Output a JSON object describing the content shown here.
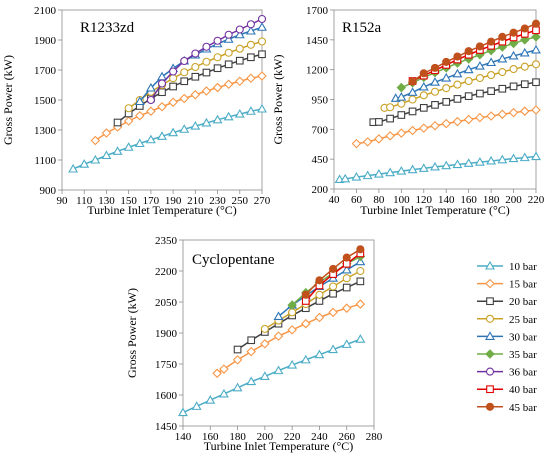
{
  "chart_data": [
    {
      "type": "line",
      "title": "R1233zd",
      "xlabel": "Turbine Inlet Temperature (°C)",
      "ylabel": "Gross Power (kW)",
      "xlim": [
        90,
        270
      ],
      "ylim": [
        900,
        2100
      ],
      "xticks": [
        90,
        110,
        130,
        150,
        170,
        190,
        210,
        230,
        250,
        270
      ],
      "yticks": [
        900,
        1100,
        1300,
        1500,
        1700,
        1900,
        2100
      ],
      "grid": false,
      "series": [
        {
          "name": "10 bar",
          "x": [
            100,
            110,
            120,
            130,
            140,
            150,
            160,
            170,
            180,
            190,
            200,
            210,
            220,
            230,
            240,
            250,
            260,
            270
          ],
          "y": [
            1040,
            1072,
            1100,
            1130,
            1158,
            1185,
            1210,
            1235,
            1258,
            1282,
            1305,
            1326,
            1347,
            1368,
            1388,
            1406,
            1425,
            1440
          ]
        },
        {
          "name": "15 bar",
          "x": [
            120,
            130,
            140,
            150,
            160,
            170,
            180,
            190,
            200,
            210,
            220,
            230,
            240,
            250,
            260,
            270
          ],
          "y": [
            1230,
            1280,
            1320,
            1360,
            1395,
            1425,
            1455,
            1485,
            1510,
            1535,
            1560,
            1583,
            1605,
            1625,
            1645,
            1660
          ]
        },
        {
          "name": "20 bar",
          "x": [
            140,
            150,
            160,
            170,
            180,
            190,
            200,
            210,
            220,
            230,
            240,
            250,
            260,
            270
          ],
          "y": [
            1350,
            1410,
            1460,
            1510,
            1552,
            1590,
            1625,
            1655,
            1683,
            1712,
            1738,
            1762,
            1785,
            1805
          ]
        },
        {
          "name": "25 bar",
          "x": [
            150,
            160,
            170,
            180,
            190,
            200,
            210,
            220,
            230,
            240,
            250,
            260,
            270
          ],
          "y": [
            1445,
            1500,
            1555,
            1600,
            1645,
            1685,
            1720,
            1755,
            1785,
            1815,
            1842,
            1868,
            1890
          ]
        },
        {
          "name": "30 bar",
          "x": [
            160,
            170,
            180,
            190,
            200,
            210,
            220,
            230,
            240,
            250,
            260,
            270
          ],
          "y": [
            1490,
            1580,
            1655,
            1710,
            1760,
            1800,
            1840,
            1875,
            1905,
            1935,
            1960,
            1985
          ]
        },
        {
          "name": "36 bar",
          "x": [
            170,
            180,
            190,
            200,
            210,
            220,
            230,
            240,
            250,
            260,
            270
          ],
          "y": [
            1500,
            1610,
            1690,
            1760,
            1810,
            1855,
            1895,
            1935,
            1970,
            2005,
            2040
          ]
        }
      ]
    },
    {
      "type": "line",
      "title": "R152a",
      "xlabel": "Turbine Inlet Temperature (°C)",
      "ylabel": "Gross Power (kW)",
      "xlim": [
        40,
        220
      ],
      "ylim": [
        200,
        1700
      ],
      "xticks": [
        40,
        60,
        80,
        100,
        120,
        140,
        160,
        180,
        200,
        220
      ],
      "yticks": [
        200,
        450,
        700,
        950,
        1200,
        1450,
        1700
      ],
      "grid": false,
      "series": [
        {
          "name": "10 bar",
          "x": [
            45,
            50,
            60,
            70,
            80,
            90,
            100,
            110,
            120,
            130,
            140,
            150,
            160,
            170,
            180,
            190,
            200,
            210,
            220
          ],
          "y": [
            280,
            285,
            300,
            312,
            325,
            337,
            350,
            362,
            373,
            385,
            395,
            405,
            415,
            425,
            435,
            445,
            455,
            463,
            472
          ]
        },
        {
          "name": "15 bar",
          "x": [
            60,
            70,
            80,
            90,
            100,
            110,
            120,
            130,
            140,
            150,
            160,
            170,
            180,
            190,
            200,
            210,
            220
          ],
          "y": [
            580,
            595,
            620,
            645,
            668,
            690,
            710,
            730,
            748,
            765,
            782,
            798,
            812,
            826,
            840,
            852,
            862
          ]
        },
        {
          "name": "20 bar",
          "x": [
            75,
            80,
            90,
            100,
            110,
            120,
            130,
            140,
            150,
            160,
            170,
            180,
            190,
            200,
            210,
            220
          ],
          "y": [
            760,
            762,
            790,
            820,
            850,
            880,
            905,
            930,
            955,
            978,
            1000,
            1020,
            1040,
            1060,
            1078,
            1095
          ]
        },
        {
          "name": "25 bar",
          "x": [
            85,
            90,
            100,
            110,
            120,
            130,
            140,
            150,
            160,
            170,
            180,
            190,
            200,
            210,
            220
          ],
          "y": [
            880,
            885,
            915,
            950,
            985,
            1015,
            1045,
            1075,
            1105,
            1130,
            1155,
            1180,
            1205,
            1225,
            1245
          ]
        },
        {
          "name": "30 bar",
          "x": [
            95,
            100,
            110,
            120,
            130,
            140,
            150,
            160,
            170,
            180,
            190,
            200,
            210,
            220
          ],
          "y": [
            960,
            970,
            1010,
            1055,
            1095,
            1130,
            1165,
            1200,
            1230,
            1260,
            1290,
            1315,
            1340,
            1365
          ]
        },
        {
          "name": "35 bar",
          "x": [
            100,
            110,
            120,
            130,
            140,
            150,
            160,
            170,
            180,
            190,
            200,
            210,
            220
          ],
          "y": [
            1050,
            1090,
            1135,
            1175,
            1215,
            1255,
            1290,
            1325,
            1360,
            1390,
            1420,
            1450,
            1475
          ]
        },
        {
          "name": "40 bar",
          "x": [
            110,
            120,
            130,
            140,
            150,
            160,
            170,
            180,
            190,
            200,
            210,
            220
          ],
          "y": [
            1105,
            1150,
            1195,
            1240,
            1285,
            1325,
            1365,
            1400,
            1435,
            1470,
            1500,
            1530
          ]
        },
        {
          "name": "45 bar",
          "x": [
            110,
            120,
            130,
            140,
            150,
            160,
            170,
            180,
            190,
            200,
            210,
            220
          ],
          "y": [
            1100,
            1170,
            1215,
            1265,
            1310,
            1355,
            1395,
            1435,
            1475,
            1510,
            1545,
            1585
          ]
        }
      ]
    },
    {
      "type": "line",
      "title": "Cyclopentane",
      "xlabel": "Turbine Inlet Temperature (°C)",
      "ylabel": "Gross Power (kW)",
      "xlim": [
        140,
        280
      ],
      "ylim": [
        1450,
        2350
      ],
      "xticks": [
        140,
        160,
        180,
        200,
        220,
        240,
        260,
        280
      ],
      "yticks": [
        1450,
        1600,
        1750,
        1900,
        2050,
        2200,
        2350
      ],
      "grid": false,
      "series": [
        {
          "name": "10 bar",
          "x": [
            140,
            150,
            160,
            170,
            180,
            190,
            200,
            210,
            220,
            230,
            240,
            250,
            260,
            270
          ],
          "y": [
            1515,
            1545,
            1575,
            1605,
            1635,
            1665,
            1690,
            1718,
            1745,
            1770,
            1795,
            1820,
            1845,
            1870
          ]
        },
        {
          "name": "15 bar",
          "x": [
            165,
            170,
            180,
            190,
            200,
            210,
            220,
            230,
            240,
            250,
            260,
            270
          ],
          "y": [
            1705,
            1725,
            1770,
            1810,
            1848,
            1885,
            1915,
            1945,
            1975,
            2000,
            2020,
            2040
          ]
        },
        {
          "name": "20 bar",
          "x": [
            180,
            190,
            200,
            210,
            220,
            230,
            240,
            250,
            260,
            270
          ],
          "y": [
            1820,
            1865,
            1905,
            1945,
            1985,
            2020,
            2055,
            2090,
            2120,
            2150
          ]
        },
        {
          "name": "25 bar",
          "x": [
            200,
            210,
            220,
            230,
            240,
            250,
            260,
            270
          ],
          "y": [
            1920,
            1960,
            2000,
            2040,
            2085,
            2125,
            2165,
            2200
          ]
        },
        {
          "name": "30 bar",
          "x": [
            210,
            220,
            230,
            240,
            250,
            260,
            270
          ],
          "y": [
            1980,
            2035,
            2080,
            2125,
            2165,
            2205,
            2245
          ]
        },
        {
          "name": "35 bar",
          "x": [
            220,
            230,
            240,
            250,
            260,
            270
          ],
          "y": [
            2035,
            2095,
            2145,
            2190,
            2235,
            2270
          ]
        },
        {
          "name": "40 bar",
          "x": [
            230,
            240,
            250,
            260,
            270
          ],
          "y": [
            2055,
            2130,
            2185,
            2235,
            2285
          ]
        },
        {
          "name": "45 bar",
          "x": [
            230,
            240,
            250,
            260,
            270
          ],
          "y": [
            2085,
            2155,
            2210,
            2265,
            2305
          ]
        }
      ]
    }
  ],
  "legend": {
    "placement": "right",
    "entries": [
      {
        "label": "10 bar",
        "color": "#4BACC6",
        "marker": "triangle-open"
      },
      {
        "label": "15 bar",
        "color": "#F79646",
        "marker": "diamond-open"
      },
      {
        "label": "20 bar",
        "color": "#404040",
        "marker": "square-open"
      },
      {
        "label": "25 bar",
        "color": "#C9A227",
        "marker": "circle-open"
      },
      {
        "label": "30 bar",
        "color": "#2E75B6",
        "marker": "triangle-open"
      },
      {
        "label": "35 bar",
        "color": "#70AD47",
        "marker": "diamond-filled"
      },
      {
        "label": "36 bar",
        "color": "#7030A0",
        "marker": "circle-open"
      },
      {
        "label": "40 bar",
        "color": "#E00000",
        "marker": "square-open"
      },
      {
        "label": "45 bar",
        "color": "#C0501C",
        "marker": "circle-filled"
      }
    ]
  }
}
